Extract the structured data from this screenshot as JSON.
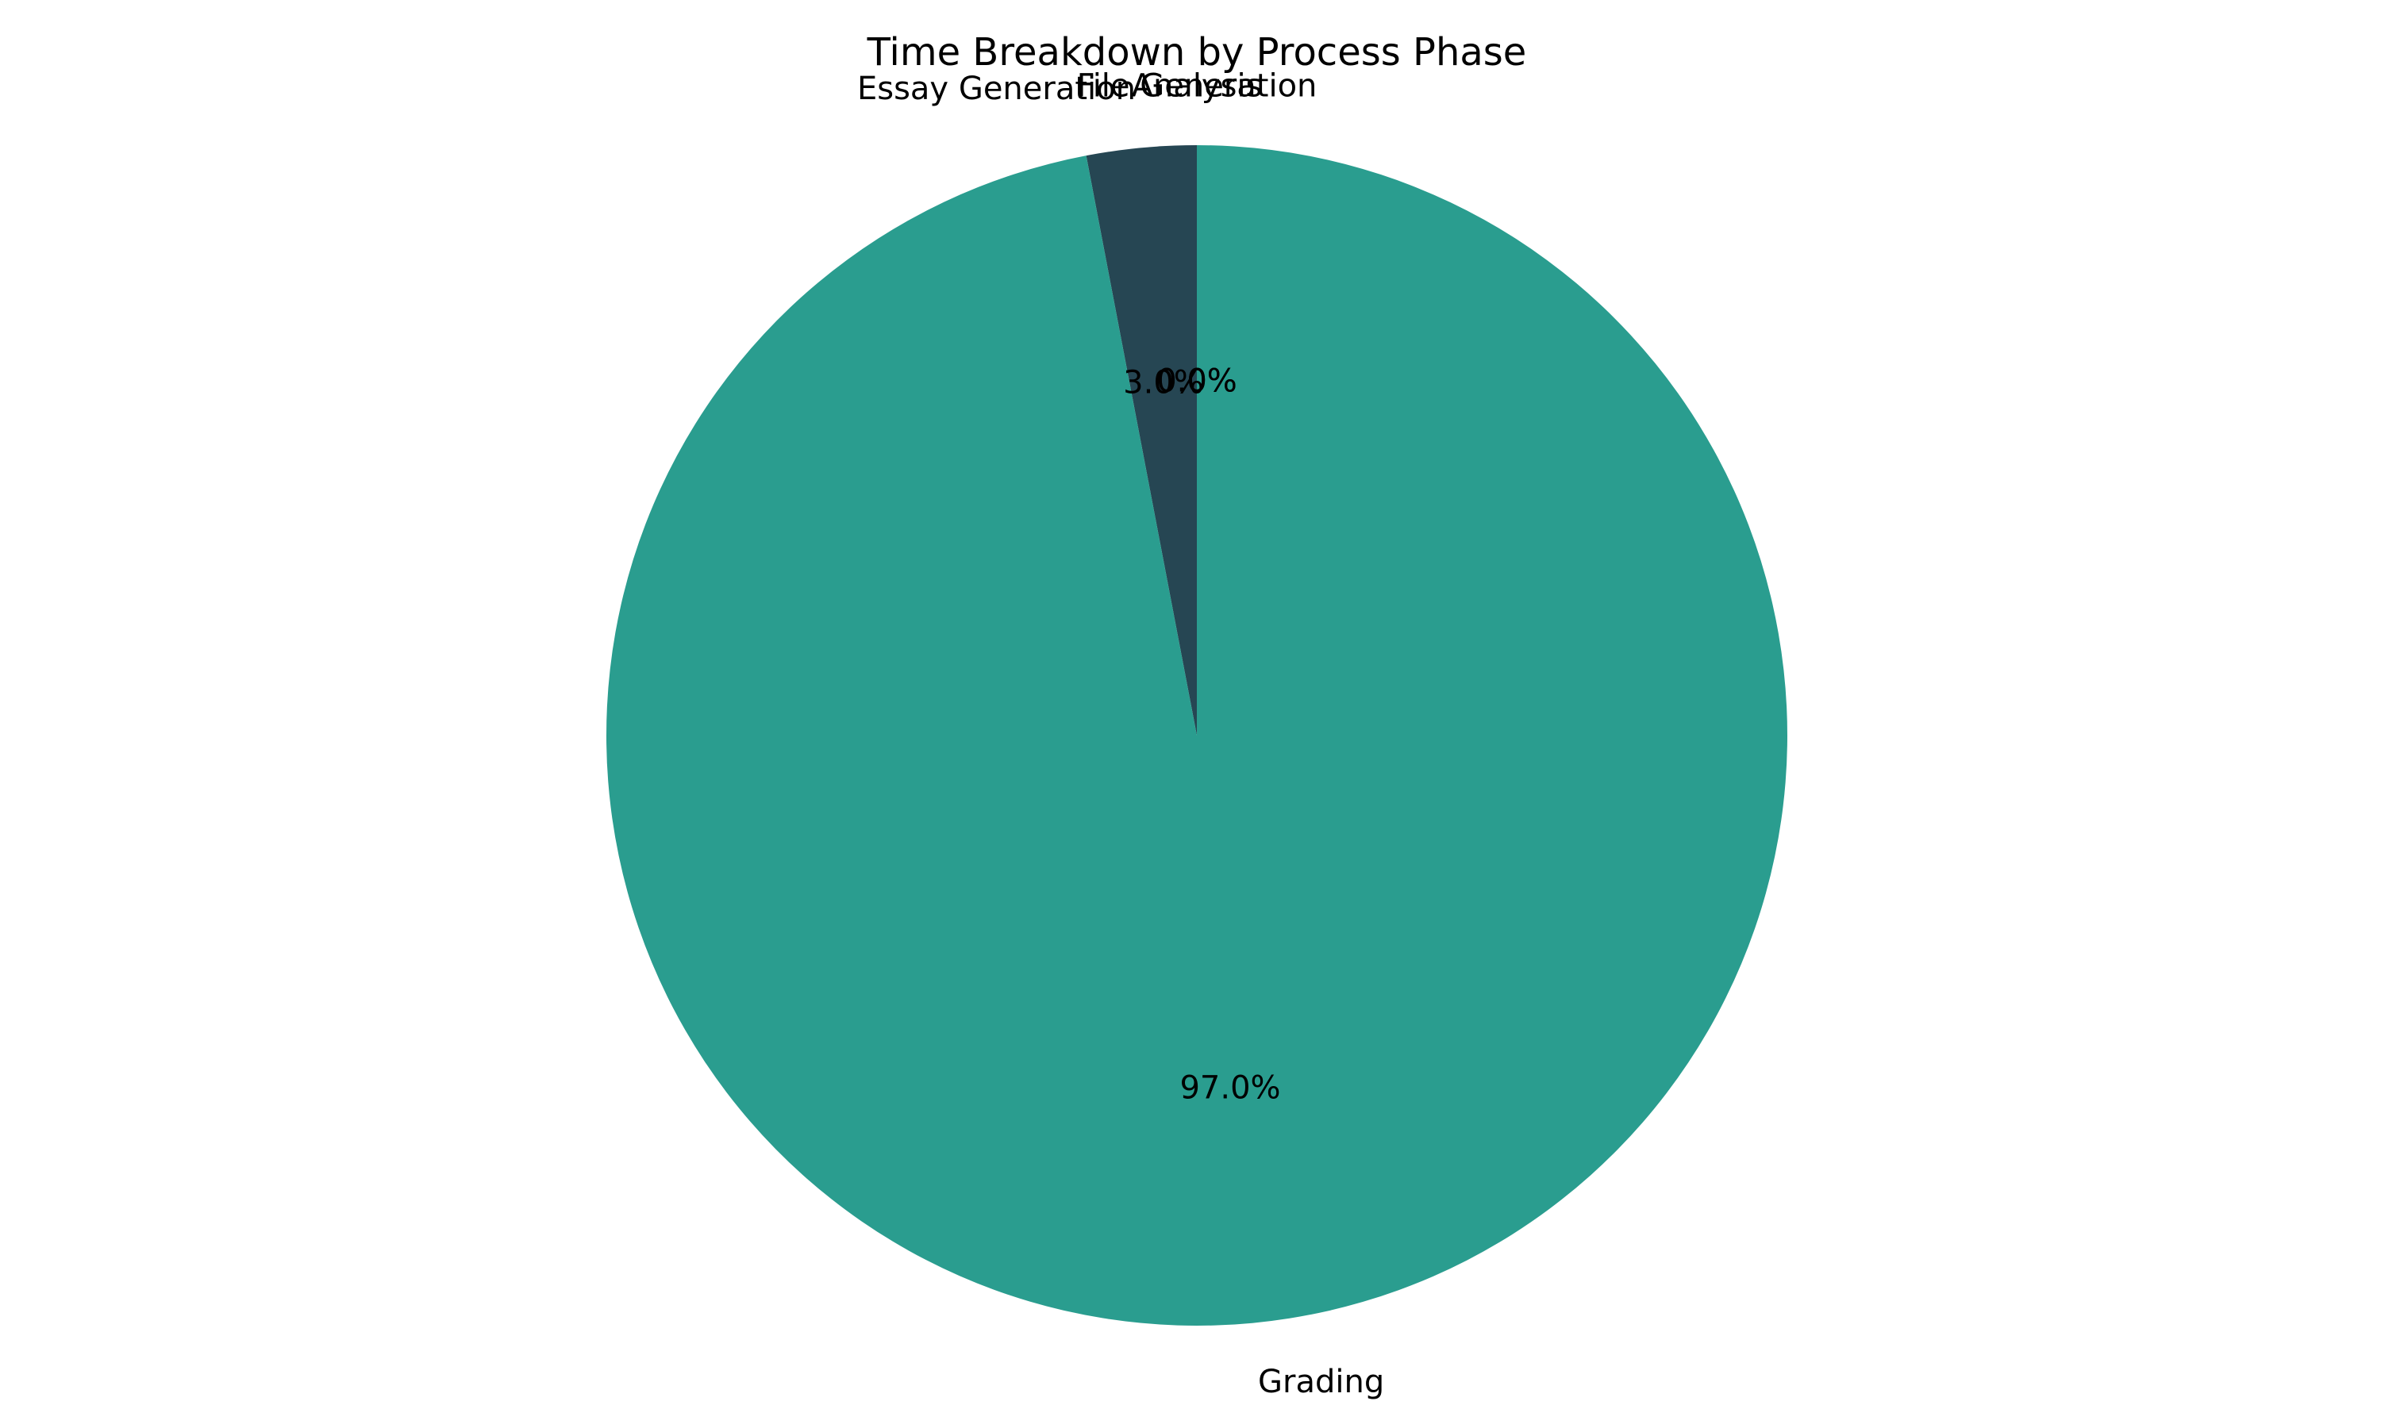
{
  "chart_data": {
    "type": "pie",
    "title": "Time Breakdown by Process Phase",
    "start_angle_deg": 90,
    "direction": "counterclockwise",
    "slices": [
      {
        "label": "Analysis",
        "value": 0.0,
        "pct_label": "0.0%",
        "color": "#e9c46a"
      },
      {
        "label": "Essay Generation",
        "value": 3.0,
        "pct_label": "3.0%",
        "color": "#264653"
      },
      {
        "label": "Grading",
        "value": 97.0,
        "pct_label": "97.0%",
        "color": "#2a9d8f"
      },
      {
        "label": "File Generation",
        "value": 0.0,
        "pct_label": "0.0%",
        "color": "#f4a261"
      }
    ]
  }
}
